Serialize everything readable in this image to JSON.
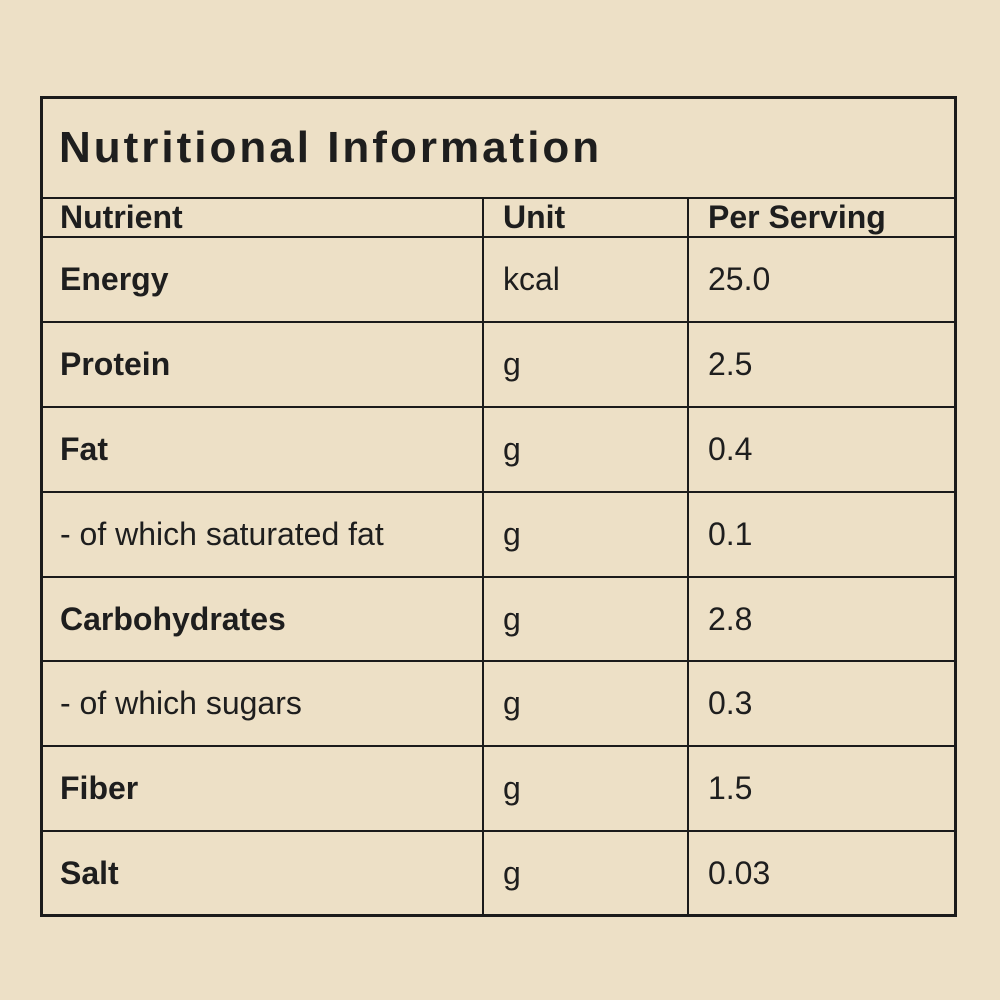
{
  "theme": {
    "background": "#ede0c6",
    "border_color": "#1b1b1b",
    "text_color": "#1e1e1e"
  },
  "table": {
    "title": "Nutritional Information",
    "headers": {
      "nutrient": "Nutrient",
      "unit": "Unit",
      "per_serving": "Per Serving"
    },
    "rows": [
      {
        "nutrient": "Energy",
        "unit": "kcal",
        "per_serving": "25.0",
        "emphasis": true
      },
      {
        "nutrient": "Protein",
        "unit": "g",
        "per_serving": "2.5",
        "emphasis": true
      },
      {
        "nutrient": "Fat",
        "unit": "g",
        "per_serving": "0.4",
        "emphasis": true
      },
      {
        "nutrient": "- of which saturated fat",
        "unit": "g",
        "per_serving": "0.1",
        "emphasis": false
      },
      {
        "nutrient": "Carbohydrates",
        "unit": "g",
        "per_serving": "2.8",
        "emphasis": true
      },
      {
        "nutrient": "- of which sugars",
        "unit": "g",
        "per_serving": "0.3",
        "emphasis": false
      },
      {
        "nutrient": "Fiber",
        "unit": "g",
        "per_serving": "1.5",
        "emphasis": true
      },
      {
        "nutrient": "Salt",
        "unit": "g",
        "per_serving": "0.03",
        "emphasis": true
      }
    ]
  }
}
